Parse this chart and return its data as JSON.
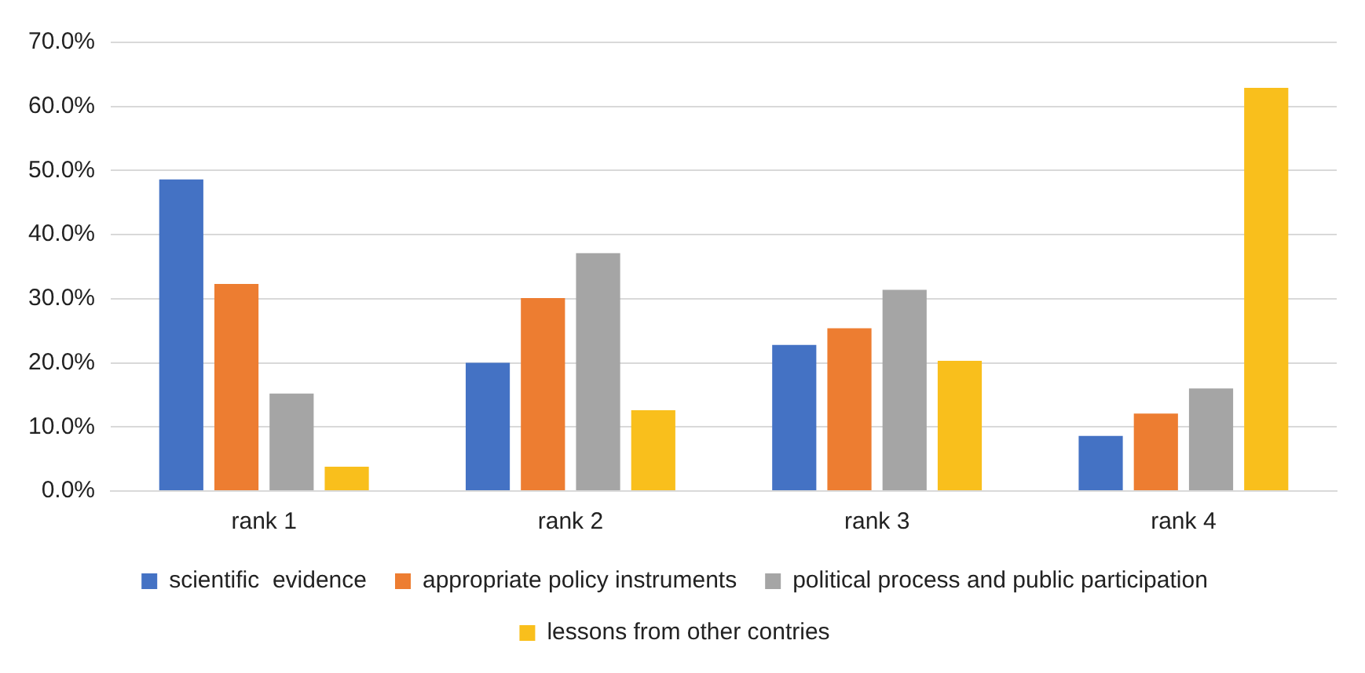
{
  "chart_data": {
    "type": "bar",
    "categories": [
      "rank 1",
      "rank 2",
      "rank 3",
      "rank 4"
    ],
    "series": [
      {
        "name": "scientific  evidence",
        "color": "#4472c4",
        "values": [
          48.6,
          20.0,
          22.8,
          8.6
        ]
      },
      {
        "name": "appropriate policy instruments",
        "color": "#ed7d31",
        "values": [
          32.3,
          30.1,
          25.4,
          12.1
        ]
      },
      {
        "name": "political process and public participation",
        "color": "#a5a5a5",
        "values": [
          15.2,
          37.1,
          31.4,
          16.0
        ]
      },
      {
        "name": "lessons from other contries",
        "color": "#f9bf1c",
        "values": [
          3.8,
          12.6,
          20.3,
          62.9
        ]
      }
    ],
    "ylim": [
      0,
      70
    ],
    "yticks": [
      {
        "value": 0,
        "label": "0.0%"
      },
      {
        "value": 10,
        "label": "10.0%"
      },
      {
        "value": 20,
        "label": "20.0%"
      },
      {
        "value": 30,
        "label": "30.0%"
      },
      {
        "value": 40,
        "label": "40.0%"
      },
      {
        "value": 50,
        "label": "50.0%"
      },
      {
        "value": 60,
        "label": "60.0%"
      },
      {
        "value": 70,
        "label": "70.0%"
      }
    ],
    "grid": "y",
    "legend": "bottom"
  }
}
